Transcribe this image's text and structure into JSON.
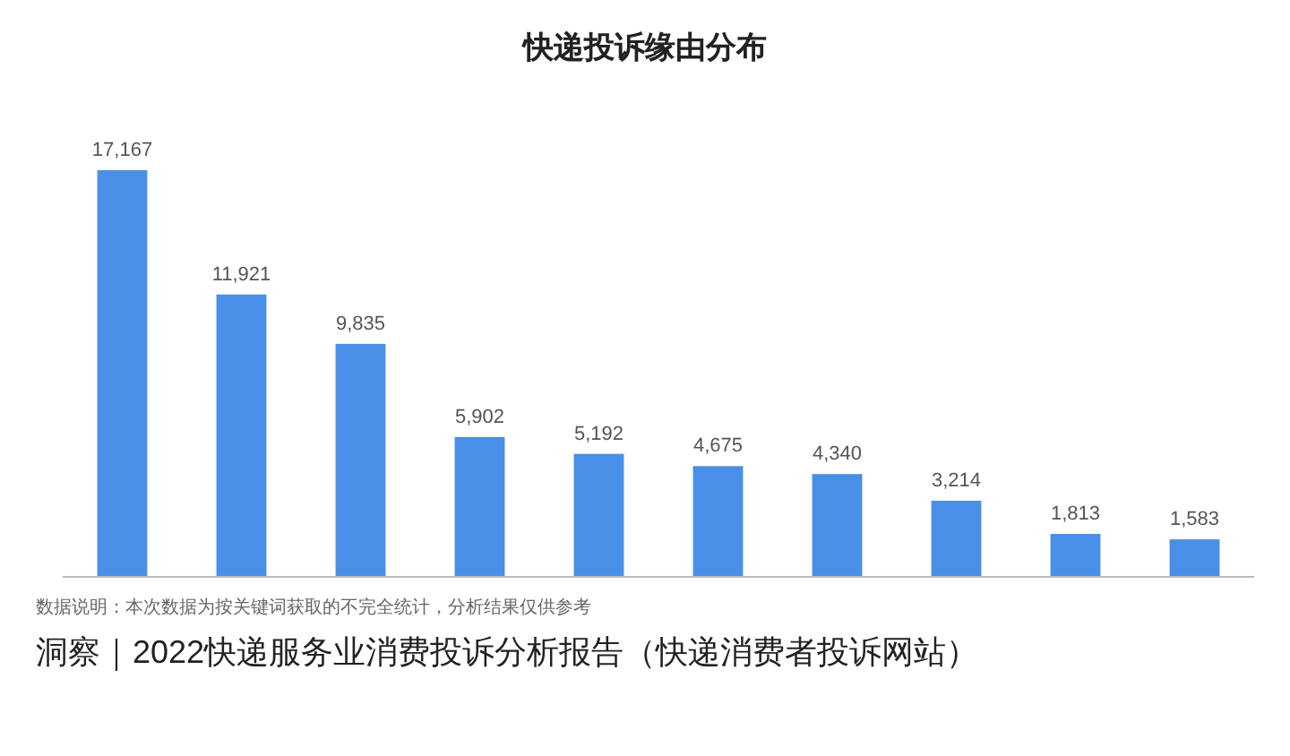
{
  "chart_data": {
    "type": "bar",
    "title": "快递投诉缘由分布",
    "categories": [
      null,
      null,
      null,
      null,
      null,
      null,
      null,
      null,
      null,
      null
    ],
    "values": [
      17167,
      11921,
      9835,
      5902,
      5192,
      4675,
      4340,
      3214,
      1813,
      1583
    ],
    "color": "#4a8fe7",
    "value_labels": [
      "17,167",
      "11,921",
      "9,835",
      "5,902",
      "5,192",
      "4,675",
      "4,340",
      "3,214",
      "1,813",
      "1,583"
    ],
    "annotations": [
      "数据说明：本次数据为按关键词获取的不完全统计，分析结果仅供参考",
      "洞察｜2022快递服务业消费投诉分析报告（快递消费者投诉网站）"
    ]
  }
}
